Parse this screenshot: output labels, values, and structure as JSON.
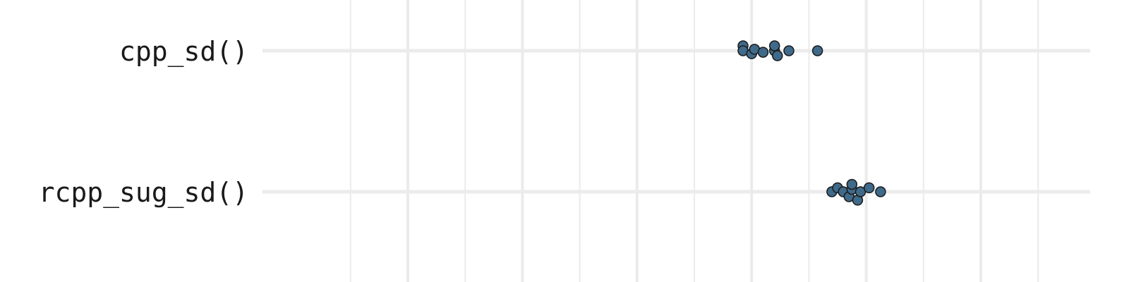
{
  "chart_data": {
    "type": "scatter",
    "subtype": "beeswarm",
    "orientation": "horizontal",
    "categories": [
      "cpp_sd()",
      "rcpp_sug_sd()"
    ],
    "point_color": "#3f6a8a",
    "grid": true,
    "xlim": [
      0,
      14
    ],
    "x_major_ticks": [
      0,
      2,
      4,
      6,
      8,
      10,
      12,
      14
    ],
    "x_minor_ticks": [
      1,
      3,
      5,
      7,
      9,
      11,
      13
    ],
    "series": [
      {
        "category": "cpp_sd()",
        "points": [
          {
            "x": 5.85,
            "offset": 0.5
          },
          {
            "x": 5.85,
            "offset": 0
          },
          {
            "x": 6.0,
            "offset": -0.3
          },
          {
            "x": 6.05,
            "offset": 0.15
          },
          {
            "x": 6.2,
            "offset": -0.15
          },
          {
            "x": 6.4,
            "offset": 0
          },
          {
            "x": 6.4,
            "offset": 0.5
          },
          {
            "x": 6.45,
            "offset": -0.5
          },
          {
            "x": 6.65,
            "offset": 0
          },
          {
            "x": 7.15,
            "offset": 0
          }
        ]
      },
      {
        "category": "rcpp_sug_sd()",
        "points": [
          {
            "x": 7.4,
            "offset": 0
          },
          {
            "x": 7.5,
            "offset": 0.4
          },
          {
            "x": 7.6,
            "offset": 0
          },
          {
            "x": 7.7,
            "offset": -0.5
          },
          {
            "x": 7.75,
            "offset": 0.25
          },
          {
            "x": 7.75,
            "offset": 0.75
          },
          {
            "x": 7.85,
            "offset": -0.85
          },
          {
            "x": 7.9,
            "offset": 0
          },
          {
            "x": 8.05,
            "offset": 0.4
          },
          {
            "x": 8.25,
            "offset": 0
          }
        ]
      }
    ]
  }
}
